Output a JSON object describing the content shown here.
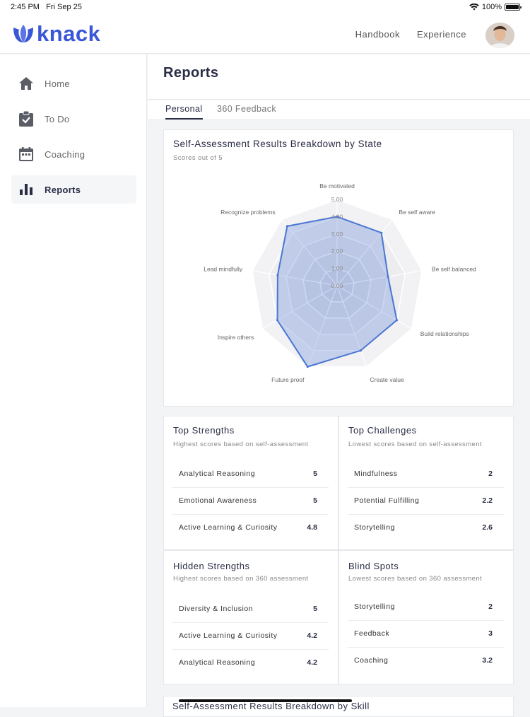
{
  "status_bar": {
    "time": "2:45 PM",
    "date": "Fri Sep 25",
    "battery": "100%"
  },
  "brand": {
    "name": "knack",
    "color": "#3b56d6"
  },
  "header": {
    "nav": [
      "Handbook",
      "Experience"
    ]
  },
  "sidebar": {
    "items": [
      {
        "label": "Home",
        "icon": "home-icon"
      },
      {
        "label": "To Do",
        "icon": "clipboard-check-icon"
      },
      {
        "label": "Coaching",
        "icon": "calendar-icon"
      },
      {
        "label": "Reports",
        "icon": "bar-chart-icon",
        "active": true
      }
    ]
  },
  "page": {
    "title": "Reports",
    "tabs": [
      {
        "label": "Personal",
        "active": true
      },
      {
        "label": "360 Feedback",
        "active": false
      }
    ]
  },
  "chart_data": {
    "type": "radar",
    "title": "Self-Assessment Results Breakdown by State",
    "subtitle": "Scores out of 5",
    "axes": [
      "Be motivated",
      "Be self aware",
      "Be self balanced",
      "Build relationships",
      "Create value",
      "Future proof",
      "Inspire others",
      "Lead mindfully",
      "Recognize problems"
    ],
    "ticks": [
      "0.00",
      "1.00",
      "2.00",
      "3.00",
      "4.00",
      "5.00"
    ],
    "range": [
      0,
      5
    ],
    "series": [
      {
        "values": [
          4.0,
          4.0,
          3.0,
          4.0,
          4.0,
          5.0,
          4.0,
          3.5,
          4.5
        ],
        "color": "#4a76d4"
      }
    ]
  },
  "cards": {
    "top_strengths": {
      "title": "Top Strengths",
      "subtitle": "Highest scores based on self-assessment",
      "rows": [
        {
          "name": "Analytical Reasoning",
          "score": "5"
        },
        {
          "name": "Emotional Awareness",
          "score": "5"
        },
        {
          "name": "Active Learning & Curiosity",
          "score": "4.8"
        }
      ]
    },
    "top_challenges": {
      "title": "Top Challenges",
      "subtitle": "Lowest scores based on self-assessment",
      "rows": [
        {
          "name": "Mindfulness",
          "score": "2"
        },
        {
          "name": "Potential Fulfilling",
          "score": "2.2"
        },
        {
          "name": "Storytelling",
          "score": "2.6"
        }
      ]
    },
    "hidden_strengths": {
      "title": "Hidden Strengths",
      "subtitle": "Highest scores based on 360 assessment",
      "rows": [
        {
          "name": "Diversity & Inclusion",
          "score": "5"
        },
        {
          "name": "Active Learning & Curiosity",
          "score": "4.2"
        },
        {
          "name": "Analytical Reasoning",
          "score": "4.2"
        }
      ]
    },
    "blind_spots": {
      "title": "Blind Spots",
      "subtitle": "Lowest scores based on 360 assessment",
      "rows": [
        {
          "name": "Storytelling",
          "score": "2"
        },
        {
          "name": "Feedback",
          "score": "3"
        },
        {
          "name": "Coaching",
          "score": "3.2"
        }
      ]
    }
  },
  "next_section": {
    "title": "Self-Assessment Results Breakdown by Skill"
  }
}
